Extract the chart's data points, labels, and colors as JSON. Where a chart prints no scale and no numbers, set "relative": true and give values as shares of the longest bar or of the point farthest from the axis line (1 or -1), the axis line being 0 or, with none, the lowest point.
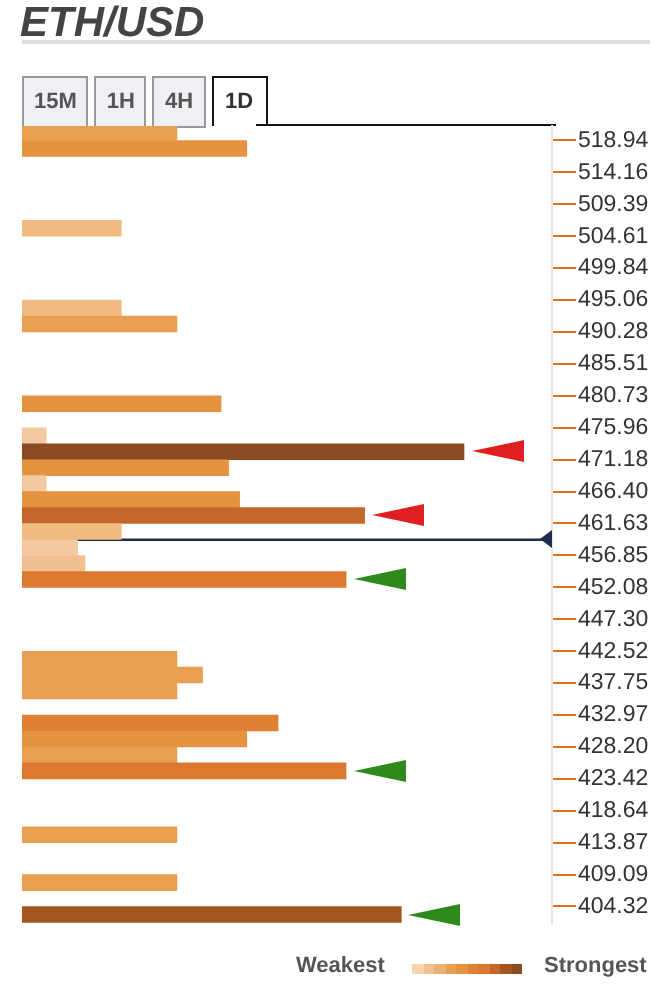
{
  "chart_data": {
    "type": "bar",
    "orientation": "horizontal",
    "relative": true,
    "title": "ETH/USD",
    "annotations": [
      "15M",
      "1H",
      "4H",
      "1D",
      "Weakest",
      "Strongest"
    ],
    "x": [
      520.13,
      517.74,
      505.8,
      493.86,
      491.47,
      479.53,
      474.76,
      472.37,
      469.98,
      467.59,
      465.21,
      462.82,
      460.43,
      458.04,
      455.65,
      453.26,
      441.33,
      438.94,
      436.55,
      431.77,
      429.39,
      427.0,
      424.61,
      415.06,
      407.89,
      403.12
    ],
    "values": [
      0.35,
      0.508,
      0.224,
      0.224,
      0.35,
      0.45,
      0.054,
      1.0,
      0.467,
      0.054,
      0.492,
      0.775,
      0.224,
      0.125,
      0.142,
      0.733,
      0.35,
      0.408,
      0.35,
      0.579,
      0.508,
      0.35,
      0.733,
      0.35,
      0.35,
      0.858
    ],
    "colors": [
      "#e8a050",
      "#e5933f",
      "#f0bb80",
      "#f0bb80",
      "#e8a050",
      "#e5933f",
      "#f3caa0",
      "#8b4a1f",
      "#e5933f",
      "#f3caa0",
      "#e5933f",
      "#c4662a",
      "#f0bb80",
      "#f3caa0",
      "#f0c090",
      "#dd7830",
      "#e8a050",
      "#e8a050",
      "#e8a050",
      "#e08035",
      "#e5933f",
      "#e8a050",
      "#dd7830",
      "#e8a050",
      "#e8a050",
      "#a3561f"
    ],
    "ylim": [
      401.7,
      521.1
    ],
    "yticks": [
      518.94,
      514.16,
      509.39,
      504.61,
      499.84,
      495.06,
      490.28,
      485.51,
      480.73,
      475.96,
      471.18,
      {
        "value": 466.4,
        "label": "466.40"
      },
      461.63,
      456.85,
      452.08,
      {
        "value": 447.3,
        "label": "447.30"
      },
      442.52,
      437.75,
      432.97,
      {
        "value": 428.2,
        "label": "428.20"
      },
      423.42,
      418.64,
      413.87,
      409.09,
      404.32
    ],
    "ref_lines": [
      {
        "axis": "y",
        "value": 459.2,
        "color": "#1f2d4d"
      }
    ],
    "grid": false,
    "legend": false
  }
}
